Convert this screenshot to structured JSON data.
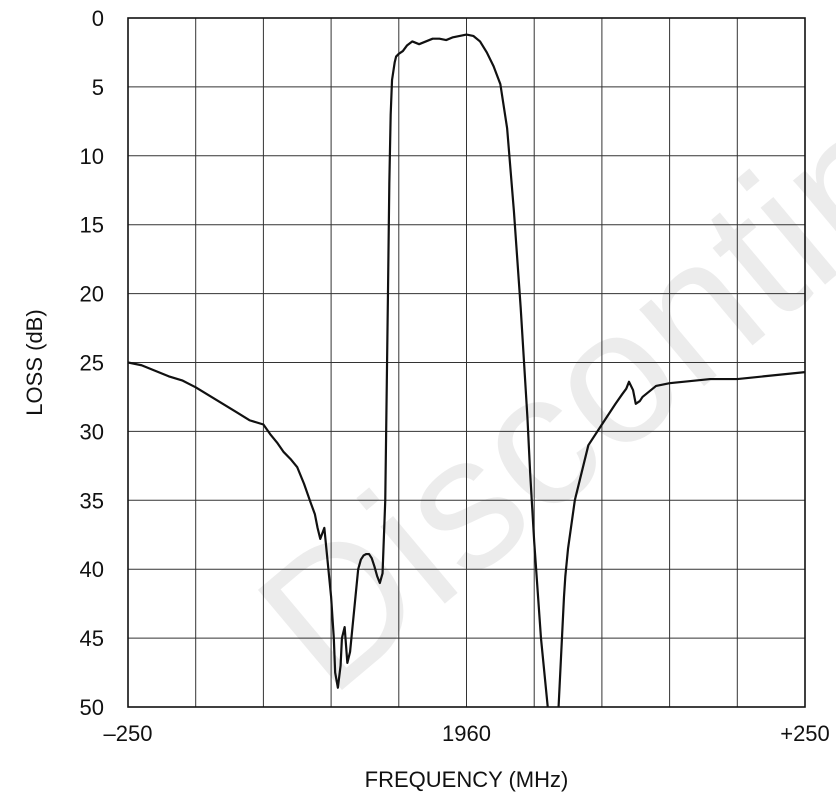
{
  "chart_data": {
    "type": "line",
    "title": "",
    "xlabel": "FREQUENCY (MHz)",
    "ylabel": "LOSS (dB)",
    "x_tick_labels": [
      "–250",
      "1960",
      "+250"
    ],
    "y_ticks": [
      0,
      5,
      10,
      15,
      20,
      25,
      30,
      35,
      40,
      45,
      50
    ],
    "y_tick_labels": [
      "0",
      "5",
      "10",
      "15",
      "20",
      "25",
      "30",
      "35",
      "40",
      "45",
      "50"
    ],
    "xlim": [
      -250,
      250
    ],
    "ylim": [
      0,
      50
    ],
    "y_inverted": true,
    "x_grid_step": 50,
    "y_grid_step": 5,
    "grid": true,
    "series": [
      {
        "x": [
          -250,
          -240,
          -230,
          -220,
          -210,
          -200,
          -190,
          -180,
          -170,
          -160,
          -150,
          -145,
          -140,
          -135,
          -130,
          -125,
          -120,
          -115,
          -112,
          -110,
          -108,
          -105,
          -103,
          -100,
          -98,
          -97,
          -95,
          -93,
          -92,
          -90,
          -88,
          -86,
          -84,
          -82,
          -80,
          -78,
          -76,
          -74,
          -72,
          -70,
          -68,
          -66,
          -64,
          -62,
          -60,
          -58,
          -57,
          -56,
          -55,
          -53,
          -52,
          -50,
          -47,
          -44,
          -40,
          -35,
          -30,
          -25,
          -20,
          -15,
          -10,
          -5,
          0,
          5,
          10,
          15,
          20,
          25,
          30,
          35,
          40,
          45,
          47,
          50,
          55,
          60,
          62,
          64,
          66,
          68,
          70,
          72,
          73,
          74,
          75,
          80,
          90,
          100,
          110,
          115,
          118,
          120,
          123,
          125,
          128,
          130,
          135,
          140,
          150,
          160,
          170,
          180,
          190,
          200,
          210,
          220,
          230,
          240,
          250
        ],
        "y": [
          25.0,
          25.2,
          25.6,
          26.0,
          26.3,
          26.8,
          27.4,
          28.0,
          28.6,
          29.2,
          29.5,
          30.2,
          30.8,
          31.5,
          32.0,
          32.6,
          33.8,
          35.2,
          36.0,
          37.0,
          37.8,
          37.0,
          39.0,
          42.0,
          45.0,
          47.5,
          48.6,
          47.0,
          45.0,
          44.2,
          46.8,
          46.0,
          44.0,
          42.0,
          40.0,
          39.3,
          39.0,
          38.9,
          38.9,
          39.2,
          39.8,
          40.5,
          41.0,
          40.3,
          35.0,
          20.0,
          12.0,
          7.0,
          4.5,
          3.2,
          2.8,
          2.6,
          2.4,
          2.0,
          1.7,
          1.9,
          1.7,
          1.5,
          1.5,
          1.6,
          1.4,
          1.3,
          1.2,
          1.3,
          1.7,
          2.5,
          3.5,
          4.8,
          8.0,
          14.0,
          21.0,
          29.0,
          33.0,
          38.0,
          45.0,
          50.0,
          52.0,
          52.0,
          52.0,
          50.0,
          46.0,
          42.0,
          40.5,
          39.5,
          38.5,
          35.0,
          31.0,
          29.5,
          28.0,
          27.3,
          26.9,
          26.4,
          27.0,
          28.0,
          27.8,
          27.5,
          27.1,
          26.7,
          26.5,
          26.4,
          26.3,
          26.2,
          26.2,
          26.2,
          26.1,
          26.0,
          25.9,
          25.8,
          25.7
        ]
      }
    ]
  },
  "watermark_text": "Discontinued product"
}
